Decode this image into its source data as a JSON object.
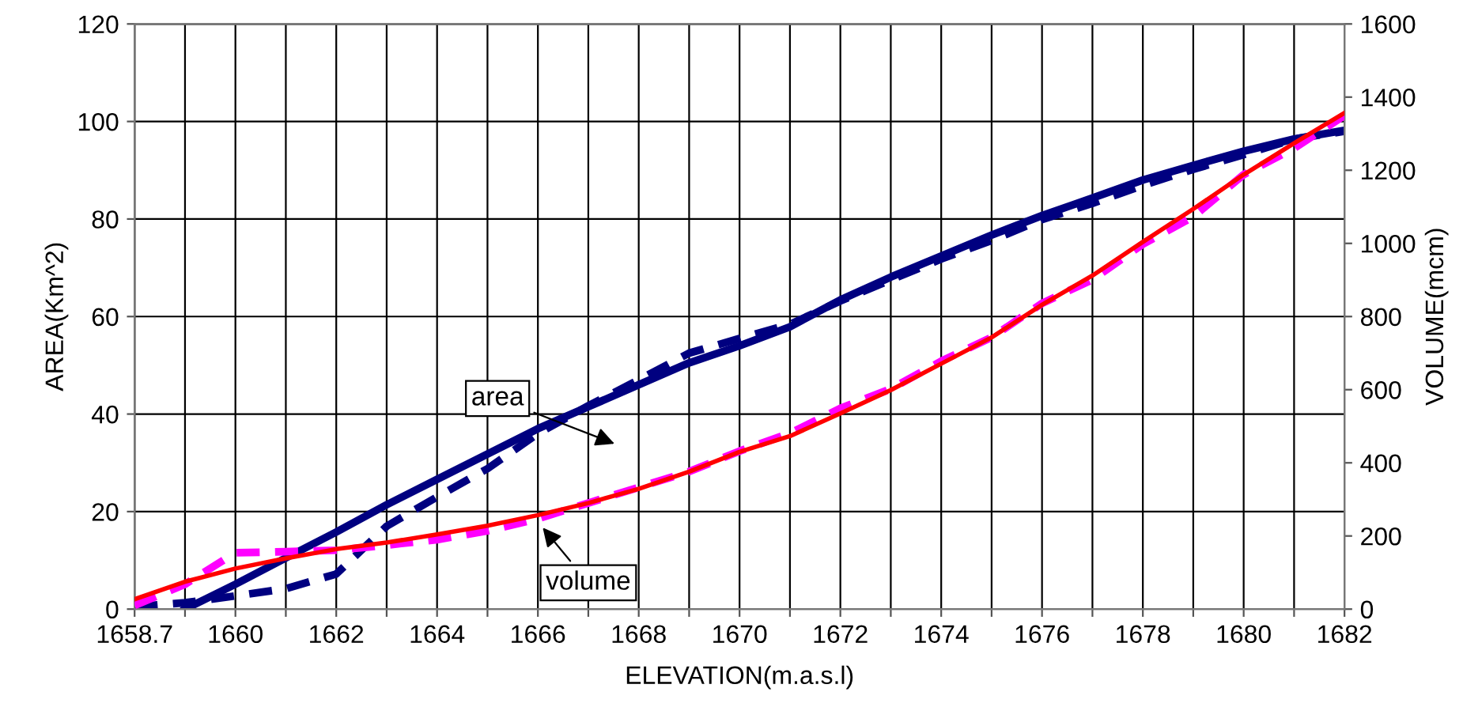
{
  "chart_data": {
    "type": "line",
    "xlabel": "ELEVATION(m.a.s.l)",
    "ylabel": "AREA(Km^2)",
    "y2label": "VOLUME(mcm)",
    "categories": [
      "1658.7",
      null,
      "1660",
      null,
      "1662",
      null,
      "1664",
      null,
      "1666",
      null,
      "1668",
      null,
      "1670",
      null,
      "1672",
      null,
      "1674",
      null,
      "1676",
      null,
      "1678",
      null,
      "1680",
      null,
      "1682"
    ],
    "ylim": [
      0,
      120
    ],
    "yticks": [
      0,
      20,
      40,
      60,
      80,
      100,
      120
    ],
    "y2lim": [
      0,
      1600
    ],
    "y2ticks": [
      0,
      200,
      400,
      600,
      800,
      1000,
      1200,
      1400,
      1600
    ],
    "grid": true,
    "marker": "none",
    "series": [
      {
        "color": "#000080",
        "line_style": "dashed",
        "values": [
          0.5,
          1.3,
          2.7,
          4.2,
          7.2,
          17,
          23,
          28.8,
          36,
          41.7,
          47,
          52.5,
          55.5,
          58.4,
          63.2,
          67.5,
          71.8,
          75.6,
          79.9,
          83.2,
          86.9,
          90.2,
          93.2,
          96.4,
          98
        ]
      },
      {
        "color": "#000080",
        "line_style": "solid",
        "values": [
          null,
          0,
          5.1,
          10.5,
          15.8,
          21.4,
          26.6,
          31.8,
          37,
          41.5,
          46,
          50.5,
          54,
          57.9,
          63.4,
          68.1,
          72.4,
          76.7,
          80.7,
          84.3,
          88,
          91,
          93.9,
          96.4,
          98.2
        ]
      },
      {
        "color": "#ff00ff",
        "line_style": "dashed",
        "axis": "y2",
        "values": [
          10,
          68,
          154,
          157,
          161,
          175,
          190,
          214,
          247,
          290,
          333,
          376,
          432,
          481,
          549,
          602,
          678,
          743,
          836,
          901,
          998,
          1073,
          1188,
          1260,
          1350
        ]
      },
      {
        "color": "#ff0000",
        "line_style": "solid",
        "axis": "y2",
        "values": [
          27,
          75,
          111,
          139,
          164,
          182,
          204,
          228,
          257,
          290,
          329,
          376,
          430,
          473,
          535,
          599,
          671,
          743,
          832,
          912,
          1004,
          1094,
          1188,
          1274,
          1357
        ]
      }
    ],
    "annotations": [
      "area",
      "volume"
    ]
  }
}
